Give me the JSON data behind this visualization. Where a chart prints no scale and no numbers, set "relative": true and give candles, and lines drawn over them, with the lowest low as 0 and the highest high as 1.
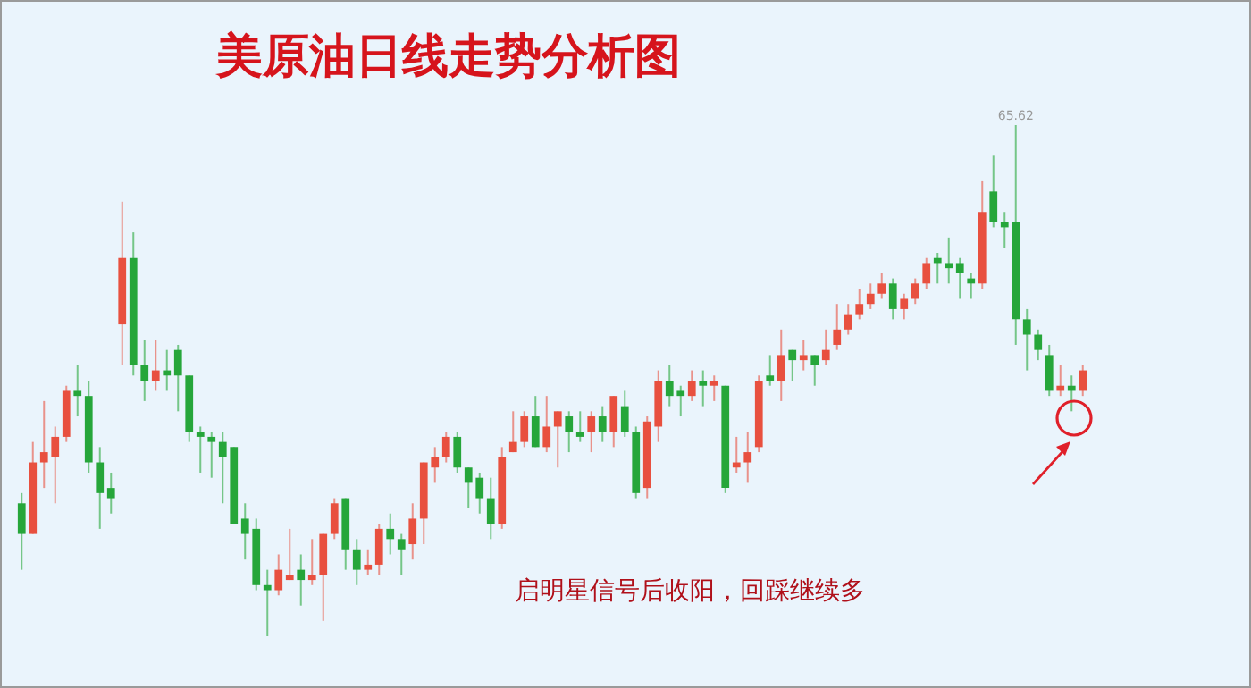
{
  "chart_data": {
    "type": "candlestick",
    "title": "美原油日线走势分析图",
    "relative": true,
    "annotations": [
      "启明星信号后收阳，回踩继续多",
      "65.62"
    ],
    "categories": [
      null,
      null,
      null,
      null,
      null,
      null,
      null,
      null,
      null,
      null,
      null,
      null,
      null,
      null,
      null,
      null,
      null,
      null,
      null,
      null,
      null,
      null,
      null,
      null,
      null,
      null,
      null,
      null,
      null,
      null,
      null,
      null,
      null,
      null,
      null,
      null,
      null,
      null,
      null,
      null,
      null,
      null,
      null,
      null,
      null,
      null,
      null,
      null,
      null,
      null,
      null,
      null,
      null,
      null,
      null,
      null,
      null,
      null,
      null,
      null,
      null,
      null,
      null,
      null,
      null,
      null,
      null,
      null,
      null,
      null,
      null,
      null,
      null,
      null,
      null,
      null,
      null,
      null,
      null,
      null,
      null,
      null,
      null,
      null,
      null,
      null,
      null,
      null,
      null,
      null,
      null,
      null,
      null,
      null,
      null,
      null
    ],
    "ohlc": [
      [
        0.26,
        0.28,
        0.13,
        0.2
      ],
      [
        0.2,
        0.38,
        0.2,
        0.34
      ],
      [
        0.34,
        0.46,
        0.29,
        0.36
      ],
      [
        0.35,
        0.41,
        0.26,
        0.39
      ],
      [
        0.39,
        0.49,
        0.38,
        0.48
      ],
      [
        0.48,
        0.53,
        0.43,
        0.47
      ],
      [
        0.47,
        0.5,
        0.32,
        0.34
      ],
      [
        0.34,
        0.37,
        0.21,
        0.28
      ],
      [
        0.29,
        0.32,
        0.24,
        0.27
      ],
      [
        0.61,
        0.85,
        0.53,
        0.74
      ],
      [
        0.74,
        0.79,
        0.51,
        0.53
      ],
      [
        0.53,
        0.58,
        0.46,
        0.5
      ],
      [
        0.5,
        0.58,
        0.48,
        0.52
      ],
      [
        0.52,
        0.56,
        0.48,
        0.51
      ],
      [
        0.56,
        0.57,
        0.44,
        0.51
      ],
      [
        0.51,
        0.51,
        0.38,
        0.4
      ],
      [
        0.4,
        0.41,
        0.32,
        0.39
      ],
      [
        0.39,
        0.4,
        0.31,
        0.38
      ],
      [
        0.38,
        0.4,
        0.26,
        0.35
      ],
      [
        0.37,
        0.37,
        0.22,
        0.22
      ],
      [
        0.23,
        0.26,
        0.15,
        0.2
      ],
      [
        0.21,
        0.23,
        0.09,
        0.1
      ],
      [
        0.1,
        0.13,
        0,
        0.09
      ],
      [
        0.09,
        0.16,
        0.08,
        0.13
      ],
      [
        0.11,
        0.21,
        0.11,
        0.12
      ],
      [
        0.13,
        0.16,
        0.06,
        0.11
      ],
      [
        0.11,
        0.19,
        0.1,
        0.12
      ],
      [
        0.12,
        0.2,
        0.03,
        0.2
      ],
      [
        0.2,
        0.27,
        0.19,
        0.26
      ],
      [
        0.27,
        0.27,
        0.13,
        0.17
      ],
      [
        0.17,
        0.19,
        0.1,
        0.13
      ],
      [
        0.13,
        0.17,
        0.12,
        0.14
      ],
      [
        0.14,
        0.22,
        0.12,
        0.21
      ],
      [
        0.21,
        0.24,
        0.16,
        0.19
      ],
      [
        0.19,
        0.2,
        0.12,
        0.17
      ],
      [
        0.18,
        0.26,
        0.15,
        0.23
      ],
      [
        0.23,
        0.34,
        0.18,
        0.34
      ],
      [
        0.33,
        0.37,
        0.3,
        0.35
      ],
      [
        0.35,
        0.4,
        0.34,
        0.39
      ],
      [
        0.39,
        0.4,
        0.32,
        0.33
      ],
      [
        0.33,
        0.33,
        0.25,
        0.3
      ],
      [
        0.31,
        0.32,
        0.24,
        0.27
      ],
      [
        0.27,
        0.31,
        0.19,
        0.22
      ],
      [
        0.22,
        0.37,
        0.21,
        0.35
      ],
      [
        0.36,
        0.44,
        0.36,
        0.38
      ],
      [
        0.38,
        0.44,
        0.37,
        0.43
      ],
      [
        0.43,
        0.47,
        0.37,
        0.37
      ],
      [
        0.37,
        0.47,
        0.36,
        0.41
      ],
      [
        0.41,
        0.44,
        0.33,
        0.44
      ],
      [
        0.43,
        0.44,
        0.36,
        0.4
      ],
      [
        0.4,
        0.44,
        0.38,
        0.39
      ],
      [
        0.4,
        0.44,
        0.36,
        0.43
      ],
      [
        0.43,
        0.45,
        0.38,
        0.4
      ],
      [
        0.4,
        0.47,
        0.37,
        0.47
      ],
      [
        0.45,
        0.48,
        0.39,
        0.4
      ],
      [
        0.4,
        0.41,
        0.27,
        0.28
      ],
      [
        0.29,
        0.43,
        0.27,
        0.42
      ],
      [
        0.41,
        0.52,
        0.38,
        0.5
      ],
      [
        0.5,
        0.53,
        0.45,
        0.47
      ],
      [
        0.48,
        0.49,
        0.43,
        0.47
      ],
      [
        0.47,
        0.52,
        0.46,
        0.5
      ],
      [
        0.5,
        0.52,
        0.45,
        0.49
      ],
      [
        0.49,
        0.51,
        0.46,
        0.5
      ],
      [
        0.49,
        0.49,
        0.28,
        0.29
      ],
      [
        0.33,
        0.39,
        0.32,
        0.34
      ],
      [
        0.34,
        0.4,
        0.3,
        0.36
      ],
      [
        0.37,
        0.51,
        0.36,
        0.5
      ],
      [
        0.51,
        0.55,
        0.49,
        0.5
      ],
      [
        0.5,
        0.6,
        0.46,
        0.55
      ],
      [
        0.56,
        0.56,
        0.5,
        0.54
      ],
      [
        0.54,
        0.58,
        0.52,
        0.55
      ],
      [
        0.55,
        0.55,
        0.49,
        0.53
      ],
      [
        0.54,
        0.6,
        0.53,
        0.56
      ],
      [
        0.57,
        0.65,
        0.56,
        0.6
      ],
      [
        0.6,
        0.65,
        0.59,
        0.63
      ],
      [
        0.63,
        0.68,
        0.62,
        0.65
      ],
      [
        0.65,
        0.69,
        0.64,
        0.67
      ],
      [
        0.67,
        0.71,
        0.66,
        0.69
      ],
      [
        0.69,
        0.7,
        0.62,
        0.64
      ],
      [
        0.64,
        0.67,
        0.62,
        0.66
      ],
      [
        0.66,
        0.7,
        0.65,
        0.69
      ],
      [
        0.69,
        0.74,
        0.68,
        0.73
      ],
      [
        0.74,
        0.75,
        0.69,
        0.73
      ],
      [
        0.73,
        0.78,
        0.69,
        0.72
      ],
      [
        0.73,
        0.74,
        0.66,
        0.71
      ],
      [
        0.7,
        0.71,
        0.66,
        0.69
      ],
      [
        0.69,
        0.89,
        0.68,
        0.83
      ],
      [
        0.87,
        0.94,
        0.8,
        0.81
      ],
      [
        0.81,
        0.83,
        0.76,
        0.8
      ],
      [
        0.81,
        1,
        0.57,
        0.62
      ],
      [
        0.62,
        0.64,
        0.52,
        0.59
      ],
      [
        0.59,
        0.6,
        0.54,
        0.56
      ],
      [
        0.55,
        0.57,
        0.47,
        0.48
      ],
      [
        0.48,
        0.53,
        0.47,
        0.49
      ],
      [
        0.49,
        0.51,
        0.44,
        0.48
      ],
      [
        0.48,
        0.53,
        0.47,
        0.52
      ]
    ],
    "colors": [
      "#26a63a",
      "#e8503f",
      "#e8503f",
      "#e8503f",
      "#e8503f",
      "#26a63a",
      "#26a63a",
      "#26a63a",
      "#26a63a",
      "#e8503f",
      "#26a63a",
      "#26a63a",
      "#e8503f",
      "#26a63a",
      "#26a63a",
      "#26a63a",
      "#26a63a",
      "#26a63a",
      "#26a63a",
      "#26a63a",
      "#26a63a",
      "#26a63a",
      "#26a63a",
      "#e8503f",
      "#e8503f",
      "#26a63a",
      "#e8503f",
      "#e8503f",
      "#e8503f",
      "#26a63a",
      "#26a63a",
      "#e8503f",
      "#e8503f",
      "#26a63a",
      "#26a63a",
      "#e8503f",
      "#e8503f",
      "#e8503f",
      "#e8503f",
      "#26a63a",
      "#26a63a",
      "#26a63a",
      "#26a63a",
      "#e8503f",
      "#e8503f",
      "#e8503f",
      "#26a63a",
      "#e8503f",
      "#e8503f",
      "#26a63a",
      "#26a63a",
      "#e8503f",
      "#26a63a",
      "#e8503f",
      "#26a63a",
      "#26a63a",
      "#e8503f",
      "#e8503f",
      "#26a63a",
      "#26a63a",
      "#e8503f",
      "#26a63a",
      "#e8503f",
      "#26a63a",
      "#e8503f",
      "#e8503f",
      "#e8503f",
      "#26a63a",
      "#e8503f",
      "#26a63a",
      "#e8503f",
      "#26a63a",
      "#e8503f",
      "#e8503f",
      "#e8503f",
      "#e8503f",
      "#e8503f",
      "#e8503f",
      "#26a63a",
      "#e8503f",
      "#e8503f",
      "#e8503f",
      "#26a63a",
      "#26a63a",
      "#26a63a",
      "#26a63a",
      "#e8503f",
      "#26a63a",
      "#26a63a",
      "#26a63a",
      "#26a63a",
      "#26a63a",
      "#26a63a",
      "#e8503f",
      "#26a63a",
      "#e8503f"
    ]
  }
}
